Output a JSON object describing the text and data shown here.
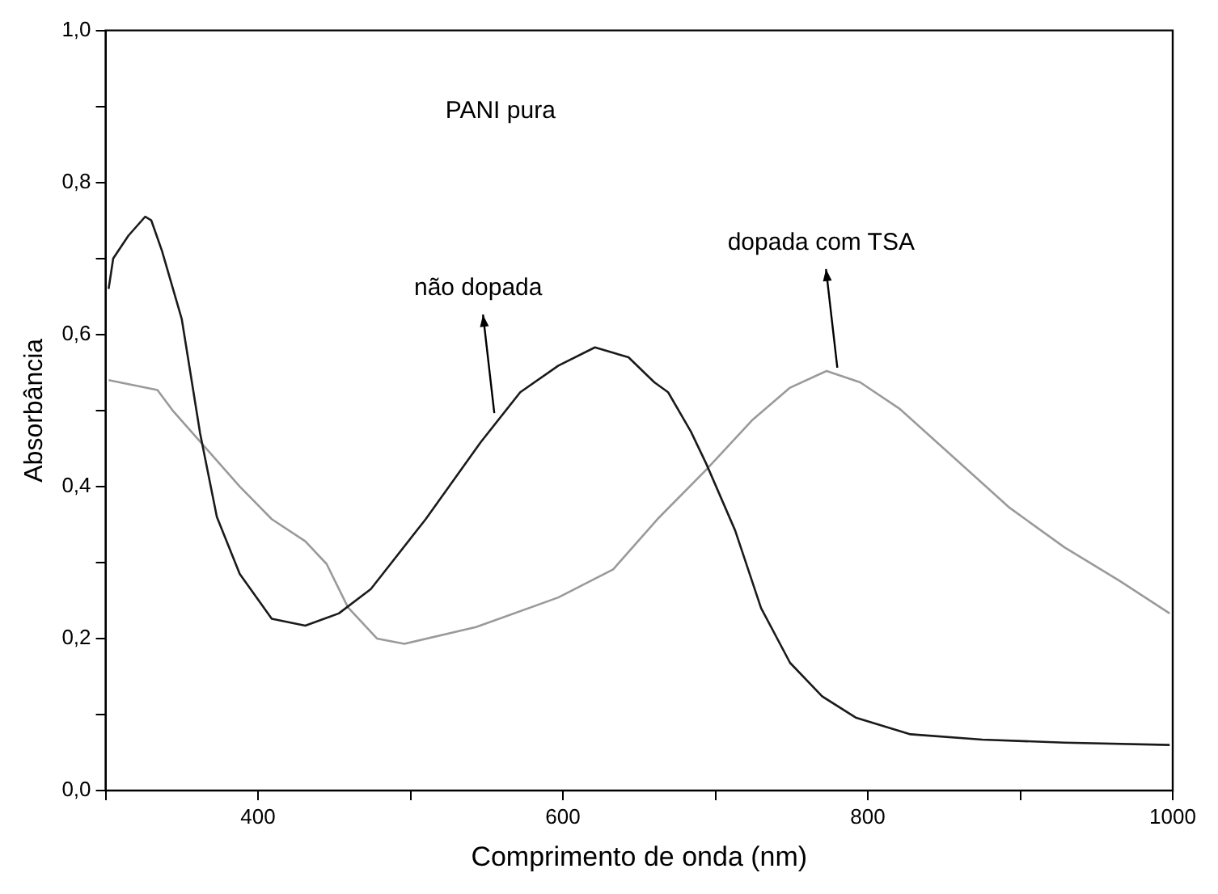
{
  "chart_data": {
    "type": "line",
    "xlabel": "Comprimento de onda (nm)",
    "ylabel": "Absorbância",
    "xlim": [
      300,
      1000
    ],
    "ylim": [
      0,
      1
    ],
    "xticks": [
      {
        "value": 300,
        "label": null
      },
      400,
      {
        "value": 500,
        "label": null
      },
      600,
      {
        "value": 700,
        "label": null
      },
      800,
      {
        "value": 900,
        "label": null
      },
      1000
    ],
    "yticks": [
      {
        "value": 0,
        "label": "0,0"
      },
      {
        "value": 0.1,
        "label": null
      },
      {
        "value": 0.2,
        "label": "0,2"
      },
      {
        "value": 0.3,
        "label": null
      },
      {
        "value": 0.4,
        "label": "0,4"
      },
      {
        "value": 0.5,
        "label": null
      },
      {
        "value": 0.6,
        "label": "0,6"
      },
      {
        "value": 0.7,
        "label": null
      },
      {
        "value": 0.8,
        "label": "0,8"
      },
      {
        "value": 0.9,
        "label": null
      },
      {
        "value": 1,
        "label": "1,0"
      }
    ],
    "grid": false,
    "legend": false,
    "marker": "none",
    "line_style": "solid",
    "annotations": [
      "PANI pura",
      {
        "text": "não dopada",
        "x": 555,
        "y": 0.49
      },
      {
        "text": "dopada com TSA",
        "x": 780,
        "y": 0.55
      }
    ],
    "series": [
      {
        "color": "#1a1a1a",
        "x": [
          302,
          305,
          315,
          326,
          330,
          337,
          350,
          362,
          373,
          388,
          409,
          431,
          453,
          474,
          510,
          546,
          572,
          597,
          621,
          643,
          660,
          669,
          684,
          694,
          713,
          730,
          749,
          770,
          792,
          828,
          875,
          929,
          998
        ],
        "values": [
          0.66,
          0.7,
          0.73,
          0.755,
          0.75,
          0.71,
          0.62,
          0.47,
          0.36,
          0.285,
          0.226,
          0.217,
          0.233,
          0.265,
          0.357,
          0.458,
          0.524,
          0.559,
          0.583,
          0.57,
          0.537,
          0.524,
          0.472,
          0.43,
          0.342,
          0.24,
          0.168,
          0.124,
          0.096,
          0.074,
          0.067,
          0.063,
          0.06
        ]
      },
      {
        "color": "#9a9a9a",
        "x": [
          302,
          334,
          344,
          366,
          388,
          409,
          431,
          445,
          459,
          478,
          496,
          543,
          597,
          633,
          662,
          694,
          724,
          749,
          773,
          795,
          821,
          857,
          893,
          929,
          965,
          998
        ],
        "values": [
          0.54,
          0.527,
          0.5,
          0.45,
          0.4,
          0.357,
          0.328,
          0.298,
          0.241,
          0.2,
          0.193,
          0.215,
          0.254,
          0.291,
          0.357,
          0.422,
          0.487,
          0.53,
          0.552,
          0.537,
          0.502,
          0.437,
          0.372,
          0.32,
          0.276,
          0.233
        ]
      }
    ]
  }
}
